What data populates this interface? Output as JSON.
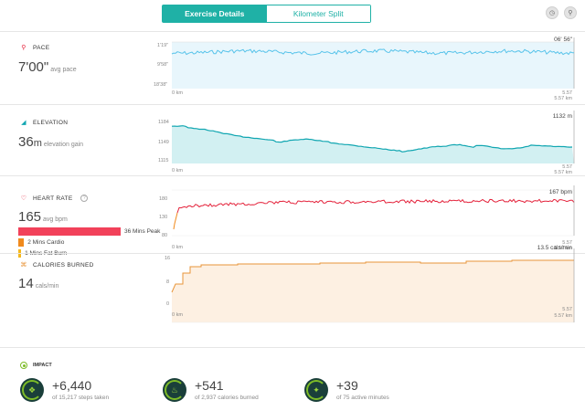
{
  "tabs": {
    "active": "Exercise Details",
    "inactive": "Kilometer Split"
  },
  "top_icons": [
    "clock-icon",
    "location-pin-icon"
  ],
  "pace": {
    "title": "PACE",
    "value": "7'00\"",
    "unit": "avg pace",
    "peak_label": "06' 56\"",
    "y_ticks": [
      "1'19\"",
      "9'58\"",
      "18'38\""
    ],
    "x_start": "0 km",
    "x_end_top": "5.57",
    "x_end_bottom": "5.57 km",
    "color": "#57c3ea"
  },
  "elevation": {
    "title": "ELEVATION",
    "value": "36",
    "value_unit": "m",
    "unit": "elevation gain",
    "peak_label": "1132 m",
    "y_ticks": [
      "1184",
      "1149",
      "1115"
    ],
    "x_start": "0 km",
    "x_end_top": "5.57",
    "x_end_bottom": "5.57 km",
    "color": "#11a6b1"
  },
  "heart_rate": {
    "title": "HEART RATE",
    "value": "165",
    "unit": "avg bpm",
    "peak_label": "167 bpm",
    "y_ticks": [
      "180",
      "130",
      "80"
    ],
    "x_start": "0 km",
    "x_end_top": "5.57",
    "x_end_bottom": "5.57 km",
    "color": "#e4213a",
    "zones": [
      {
        "label": "36 Mins Peak",
        "color": "#f2415a",
        "minutes": 36
      },
      {
        "label": "2 Mins Cardio",
        "color": "#f08a1d",
        "minutes": 2
      },
      {
        "label": "1 Mins Fat Burn",
        "color": "#f5b81c",
        "minutes": 1
      }
    ]
  },
  "calories": {
    "title": "CALORIES BURNED",
    "value": "14",
    "unit": "cals/min",
    "peak_label": "13.5 cals/min",
    "y_ticks": [
      "16",
      "8",
      "0"
    ],
    "x_start": "0 km",
    "x_end_top": "5.57",
    "x_end_bottom": "5.57 km",
    "color": "#e8953a"
  },
  "impact": {
    "title": "IMPACT",
    "stats": [
      {
        "value": "+6,440",
        "sub": "of 15,217 steps taken",
        "icon": "footsteps-icon"
      },
      {
        "value": "+541",
        "sub": "of 2,937 calories burned",
        "icon": "flame-icon"
      },
      {
        "value": "+39",
        "sub": "of 75 active minutes",
        "icon": "running-icon"
      }
    ]
  }
}
